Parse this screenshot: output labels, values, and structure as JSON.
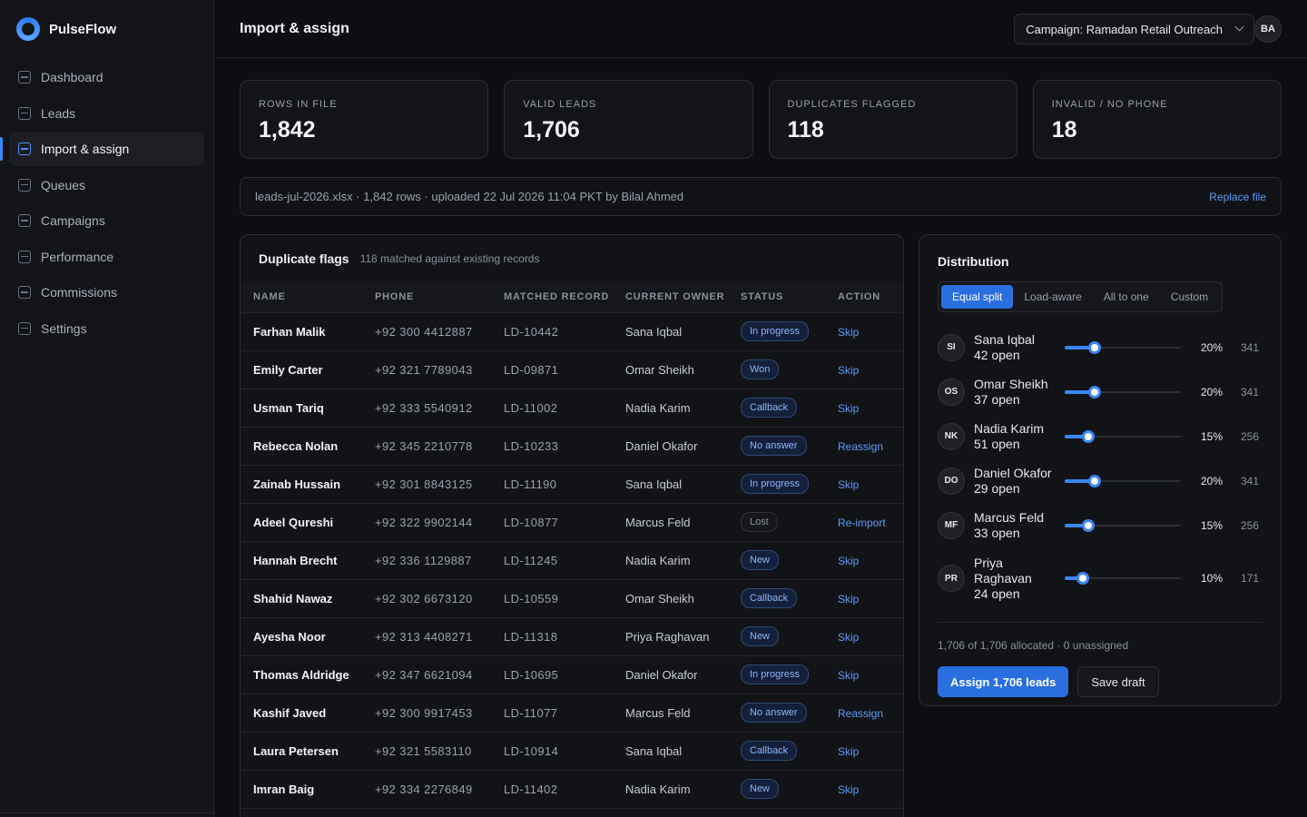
{
  "app": {
    "name": "PulseFlow"
  },
  "sidebar": {
    "items": [
      {
        "label": "Dashboard"
      },
      {
        "label": "Leads"
      },
      {
        "label": "Import & assign",
        "active": true
      },
      {
        "label": "Queues"
      },
      {
        "label": "Campaigns"
      },
      {
        "label": "Performance"
      },
      {
        "label": "Commissions"
      },
      {
        "label": "Settings"
      }
    ]
  },
  "header": {
    "title": "Import & assign",
    "campaign": "Campaign: Ramadan Retail Outreach",
    "user_initials": "BA"
  },
  "stats": [
    {
      "label": "ROWS IN FILE",
      "value": "1,842"
    },
    {
      "label": "VALID LEADS",
      "value": "1,706"
    },
    {
      "label": "DUPLICATES FLAGGED",
      "value": "118"
    },
    {
      "label": "INVALID / NO PHONE",
      "value": "18"
    }
  ],
  "file": {
    "info": "leads-jul-2026.xlsx · 1,842 rows · uploaded 22 Jul 2026 11:04 PKT by Bilal Ahmed",
    "replace_label": "Replace file"
  },
  "duplicates": {
    "title": "Duplicate flags",
    "subtitle": "118 matched against existing records",
    "columns": [
      "NAME",
      "PHONE",
      "MATCHED RECORD",
      "CURRENT OWNER",
      "STATUS",
      "ACTION"
    ],
    "rows": [
      {
        "name": "Farhan Malik",
        "phone": "+92 300 4412887",
        "record": "LD-10442",
        "owner": "Sana Iqbal",
        "status": "In progress",
        "action": "Skip"
      },
      {
        "name": "Emily Carter",
        "phone": "+92 321 7789043",
        "record": "LD-09871",
        "owner": "Omar Sheikh",
        "status": "Won",
        "action": "Skip"
      },
      {
        "name": "Usman Tariq",
        "phone": "+92 333 5540912",
        "record": "LD-11002",
        "owner": "Nadia Karim",
        "status": "Callback",
        "action": "Skip"
      },
      {
        "name": "Rebecca Nolan",
        "phone": "+92 345 2210778",
        "record": "LD-10233",
        "owner": "Daniel Okafor",
        "status": "No answer",
        "action": "Reassign"
      },
      {
        "name": "Zainab Hussain",
        "phone": "+92 301 8843125",
        "record": "LD-11190",
        "owner": "Sana Iqbal",
        "status": "In progress",
        "action": "Skip"
      },
      {
        "name": "Adeel Qureshi",
        "phone": "+92 322 9902144",
        "record": "LD-10877",
        "owner": "Marcus Feld",
        "status": "Lost",
        "action": "Re-import"
      },
      {
        "name": "Hannah Brecht",
        "phone": "+92 336 1129887",
        "record": "LD-11245",
        "owner": "Nadia Karim",
        "status": "New",
        "action": "Skip"
      },
      {
        "name": "Shahid Nawaz",
        "phone": "+92 302 6673120",
        "record": "LD-10559",
        "owner": "Omar Sheikh",
        "status": "Callback",
        "action": "Skip"
      },
      {
        "name": "Ayesha Noor",
        "phone": "+92 313 4408271",
        "record": "LD-11318",
        "owner": "Priya Raghavan",
        "status": "New",
        "action": "Skip"
      },
      {
        "name": "Thomas Aldridge",
        "phone": "+92 347 6621094",
        "record": "LD-10695",
        "owner": "Daniel Okafor",
        "status": "In progress",
        "action": "Skip"
      },
      {
        "name": "Kashif Javed",
        "phone": "+92 300 9917453",
        "record": "LD-11077",
        "owner": "Marcus Feld",
        "status": "No answer",
        "action": "Reassign"
      },
      {
        "name": "Laura Petersen",
        "phone": "+92 321 5583110",
        "record": "LD-10914",
        "owner": "Sana Iqbal",
        "status": "Callback",
        "action": "Skip"
      },
      {
        "name": "Imran Baig",
        "phone": "+92 334 2276849",
        "record": "LD-11402",
        "owner": "Nadia Karim",
        "status": "New",
        "action": "Skip"
      },
      {
        "name": "",
        "phone": "",
        "record": "",
        "owner": "",
        "status": "",
        "action": ""
      }
    ]
  },
  "distribution": {
    "title": "Distribution",
    "modes": [
      "Equal split",
      "Load-aware",
      "All to one",
      "Custom"
    ],
    "active_mode": 0,
    "agents": [
      {
        "initials": "SI",
        "name": "Sana Iqbal",
        "open": "42 open",
        "percent": "20%",
        "percent_value": 0.2,
        "count": "341"
      },
      {
        "initials": "OS",
        "name": "Omar Sheikh",
        "open": "37 open",
        "percent": "20%",
        "percent_value": 0.2,
        "count": "341"
      },
      {
        "initials": "NK",
        "name": "Nadia Karim",
        "open": "51 open",
        "percent": "15%",
        "percent_value": 0.15,
        "count": "256"
      },
      {
        "initials": "DO",
        "name": "Daniel Okafor",
        "open": "29 open",
        "percent": "20%",
        "percent_value": 0.2,
        "count": "341"
      },
      {
        "initials": "MF",
        "name": "Marcus Feld",
        "open": "33 open",
        "percent": "15%",
        "percent_value": 0.15,
        "count": "256"
      },
      {
        "initials": "PR",
        "name": "Priya Raghavan",
        "open": "24 open",
        "percent": "10%",
        "percent_value": 0.1,
        "count": "171"
      }
    ],
    "allocation": "1,706 of 1,706 allocated · 0 unassigned",
    "assign_label": "Assign 1,706 leads",
    "draft_label": "Save draft"
  },
  "colors": {
    "accent": "#3b86f7",
    "background": "#0d0e11",
    "panel": "#131418"
  }
}
